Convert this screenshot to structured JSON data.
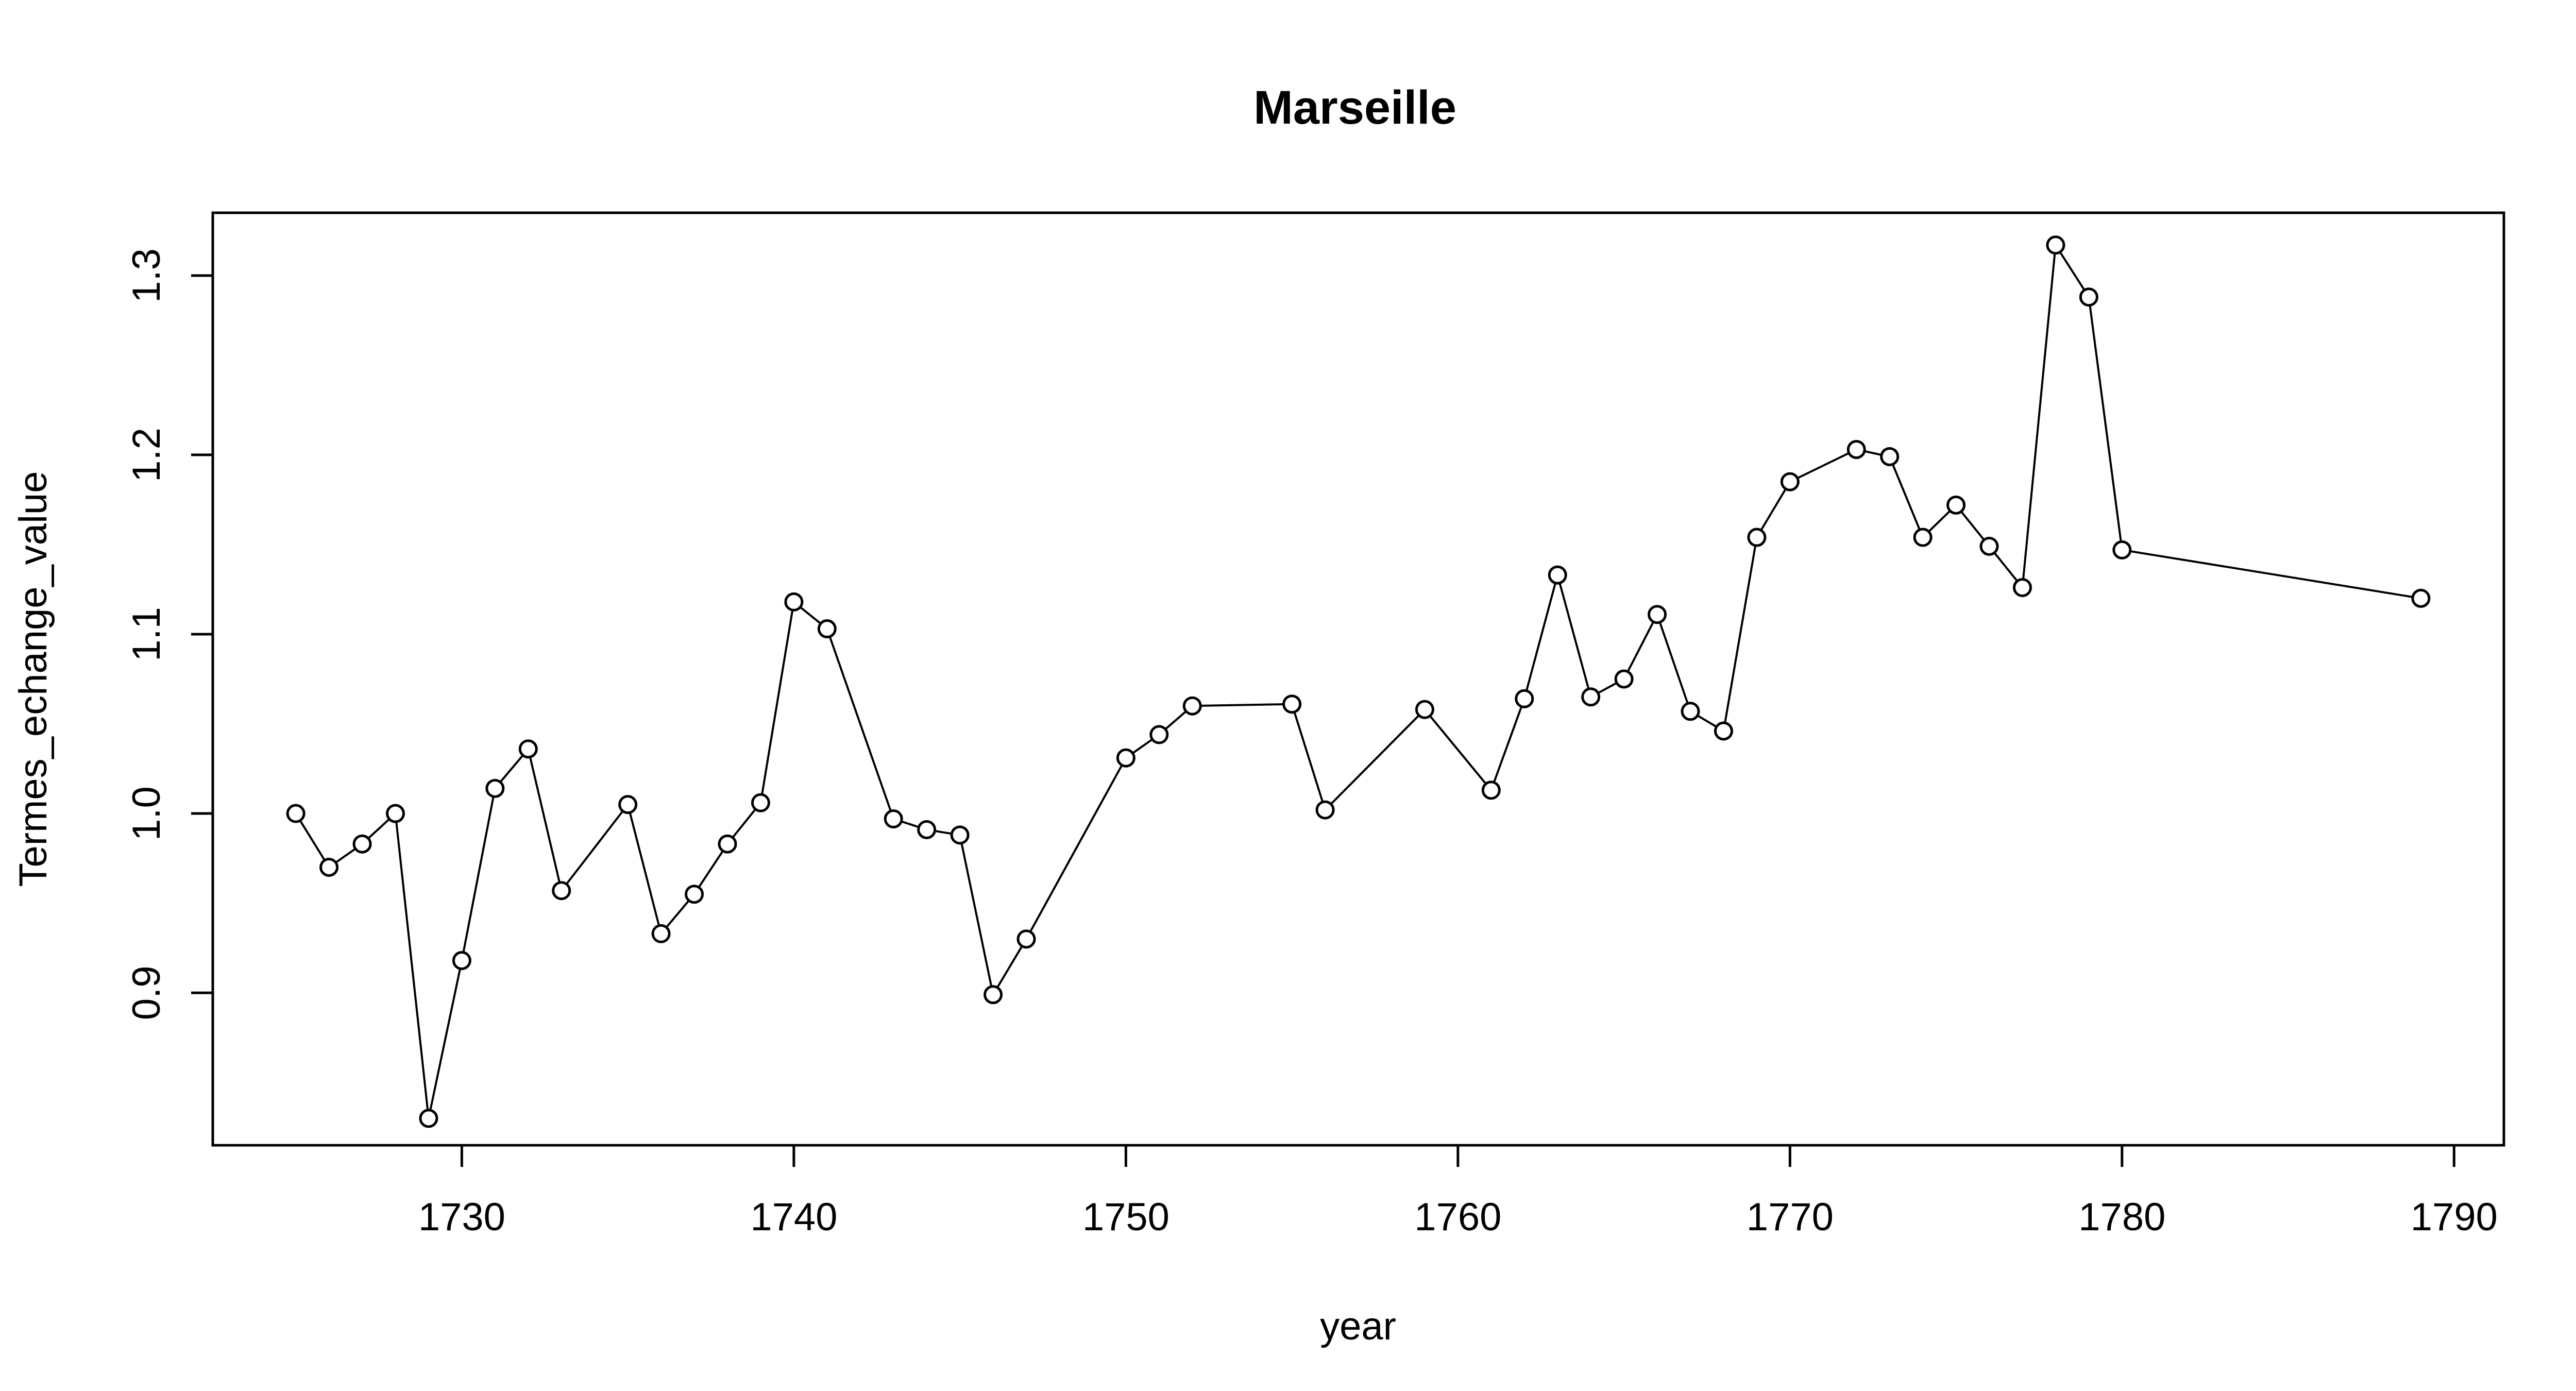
{
  "chart_data": {
    "type": "line",
    "title": "Marseille",
    "xlabel": "year",
    "ylabel": "Termes_echange_value",
    "xlim": [
      1722.5,
      1791.5
    ],
    "ylim": [
      0.815,
      1.335
    ],
    "x_ticks": [
      1730,
      1740,
      1750,
      1760,
      1770,
      1780,
      1790
    ],
    "y_ticks": [
      0.9,
      1.0,
      1.1,
      1.2,
      1.3
    ],
    "x_tick_labels": [
      "1730",
      "1740",
      "1750",
      "1760",
      "1770",
      "1780",
      "1790"
    ],
    "y_tick_labels": [
      "0.9",
      "1.0",
      "1.1",
      "1.2",
      "1.3"
    ],
    "markers": "open-circle",
    "grid": false,
    "line_color": "#000000",
    "series": [
      {
        "x": [
          1725,
          1726,
          1727,
          1728,
          1729,
          1730,
          1731,
          1732,
          1733,
          1735,
          1736,
          1737,
          1738,
          1739,
          1740,
          1741,
          1743,
          1744,
          1745,
          1746,
          1747,
          1750,
          1751,
          1752,
          1755,
          1756,
          1759,
          1761,
          1762,
          1763,
          1764,
          1765,
          1766,
          1767,
          1768,
          1769,
          1770,
          1772,
          1773,
          1774,
          1775,
          1776,
          1777,
          1778,
          1779,
          1780,
          1789
        ],
        "y": [
          1.0,
          0.97,
          0.983,
          1.0,
          0.83,
          0.918,
          1.014,
          1.036,
          0.957,
          1.005,
          0.933,
          0.955,
          0.983,
          1.006,
          1.118,
          1.103,
          0.997,
          0.991,
          0.988,
          0.899,
          0.93,
          1.031,
          1.044,
          1.06,
          1.061,
          1.002,
          1.058,
          1.013,
          1.064,
          1.133,
          1.065,
          1.075,
          1.111,
          1.057,
          1.046,
          1.154,
          1.185,
          1.203,
          1.199,
          1.154,
          1.172,
          1.149,
          1.126,
          1.317,
          1.288,
          1.147,
          1.12
        ]
      }
    ]
  }
}
